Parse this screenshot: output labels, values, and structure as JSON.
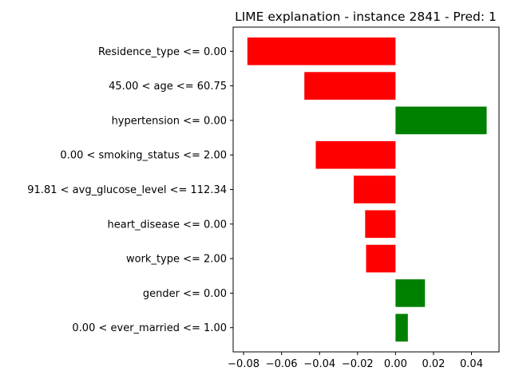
{
  "chart_data": {
    "type": "bar",
    "orientation": "horizontal",
    "title": "LIME explanation - instance 2841 - Pred: 1",
    "xlabel": "",
    "ylabel": "",
    "xlim": [
      -0.0855,
      0.0545
    ],
    "xticks": [
      -0.08,
      -0.06,
      -0.04,
      -0.02,
      0.0,
      0.02,
      0.04
    ],
    "xtick_labels": [
      "−0.08",
      "−0.06",
      "−0.04",
      "−0.02",
      "0.00",
      "0.02",
      "0.04"
    ],
    "grid": false,
    "legend": "none",
    "colors": {
      "negative": "#ff0000",
      "positive": "#008000"
    },
    "categories": [
      "Residence_type <= 0.00",
      "45.00 < age <= 60.75",
      "hypertension <= 0.00",
      "0.00 < smoking_status <= 2.00",
      "91.81 < avg_glucose_level <= 112.34",
      "heart_disease <= 0.00",
      "work_type <= 2.00",
      "gender <= 0.00",
      "0.00 < ever_married <= 1.00"
    ],
    "values": [
      -0.078,
      -0.048,
      0.048,
      -0.042,
      -0.022,
      -0.016,
      -0.0155,
      0.0155,
      0.0065
    ]
  }
}
